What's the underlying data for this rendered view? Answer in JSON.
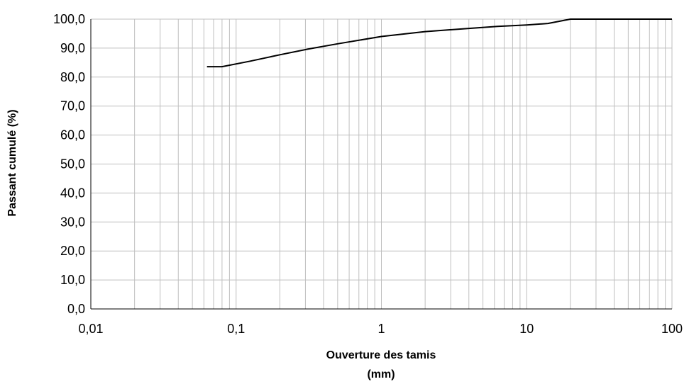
{
  "chart_data": {
    "type": "line",
    "title": "",
    "xlabel": "Ouverture des tamis",
    "xlabel_unit": "(mm)",
    "ylabel": "Passant cumulé (%)",
    "x_scale": "log",
    "xlim": [
      0.01,
      100
    ],
    "ylim": [
      0,
      100
    ],
    "grid": true,
    "legend": "none",
    "x_ticks": [
      "0,01",
      "0,1",
      "1",
      "10",
      "100"
    ],
    "y_ticks": [
      "0,0",
      "10,0",
      "20,0",
      "30,0",
      "40,0",
      "50,0",
      "60,0",
      "70,0",
      "80,0",
      "90,0",
      "100,0"
    ],
    "series": [
      {
        "color": "#000000",
        "x": [
          0.063,
          0.08,
          0.125,
          0.2,
          0.315,
          0.5,
          1,
          2,
          4,
          6.3,
          10,
          14,
          20,
          31.5,
          50,
          100
        ],
        "y": [
          83.6,
          83.6,
          85.5,
          87.7,
          89.7,
          91.5,
          94.0,
          95.7,
          96.8,
          97.5,
          98.0,
          98.5,
          100,
          100,
          100,
          100
        ]
      }
    ]
  },
  "colors": {
    "grid": "#bfbfbf",
    "axis": "#000000",
    "line": "#000000"
  }
}
